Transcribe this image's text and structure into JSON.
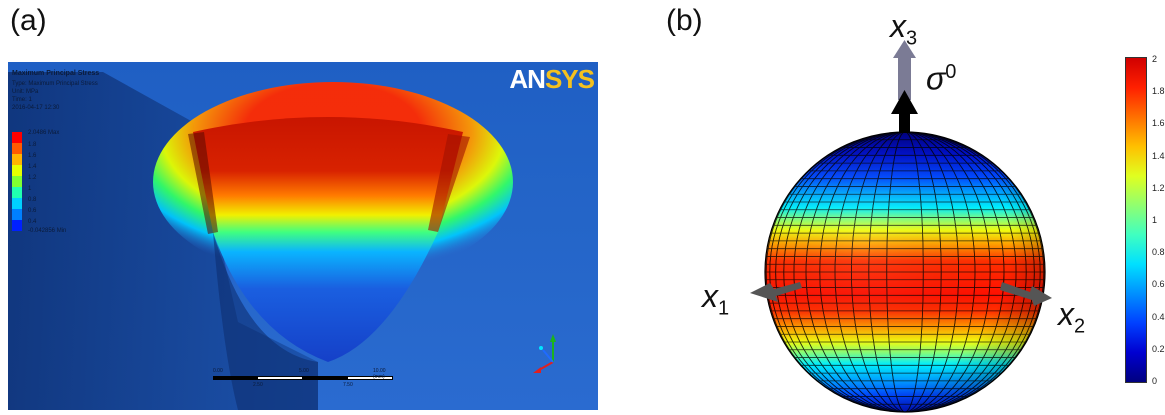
{
  "panel_a": {
    "label": "(a)",
    "logo": {
      "part1": "AN",
      "part2": "SYS"
    },
    "legend": {
      "title": "Maximum Principal Stress",
      "lines": [
        "Type: Maximum Principal Stress",
        "Unit: MPa",
        "Time: 1",
        "2016-04-17 12:30"
      ],
      "max_label": "2.0486 Max",
      "min_label": "-0.042856 Min",
      "levels": [
        "1.8",
        "1.6",
        "1.4",
        "1.2",
        "1",
        "0.8",
        "0.6",
        "0.4",
        "0.2"
      ]
    },
    "scale_numbers": [
      "0.00",
      "5.00",
      "10.00 (mm)",
      "2.50",
      "7.50"
    ]
  },
  "panel_b": {
    "label": "(b)",
    "axes": {
      "x1": {
        "symbol": "x",
        "sub": "1"
      },
      "x2": {
        "symbol": "x",
        "sub": "2"
      },
      "x3": {
        "symbol": "x",
        "sub": "3"
      }
    },
    "stress": {
      "symbol": "σ",
      "sup": "0"
    },
    "colorbar": {
      "ticks": [
        "2",
        "1.8",
        "1.6",
        "1.4",
        "1.2",
        "1",
        "0.8",
        "0.6",
        "0.4",
        "0.2",
        "0"
      ],
      "colors": [
        "#00007f",
        "#0000d0",
        "#0040ff",
        "#0090ff",
        "#00e0ff",
        "#40ffc0",
        "#90ff70",
        "#e0ff20",
        "#ffc000",
        "#ff7000",
        "#ff2000",
        "#d00000"
      ]
    }
  }
}
